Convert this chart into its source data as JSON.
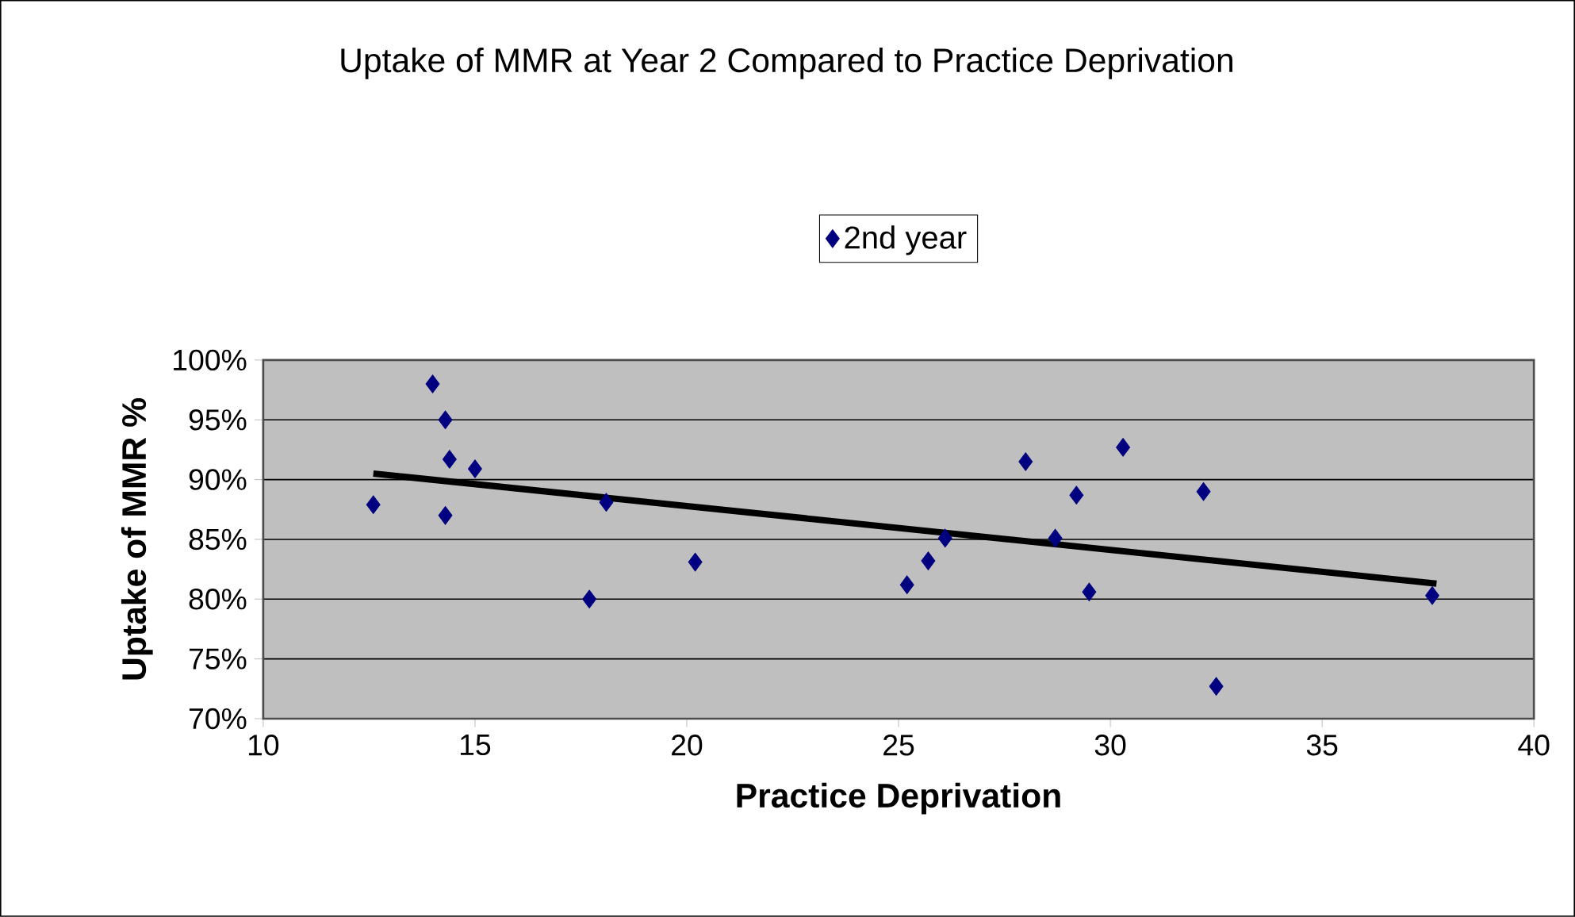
{
  "chart_data": {
    "type": "scatter",
    "title": "Uptake of MMR at Year 2 Compared to Practice Deprivation",
    "xlabel": "Practice Deprivation",
    "ylabel": "Uptake of MMR %",
    "xlim": [
      10,
      40
    ],
    "xticks": [
      10,
      15,
      20,
      25,
      30,
      35,
      40
    ],
    "ylim": [
      70,
      100
    ],
    "yticks": [
      {
        "value": 70,
        "label": "70%"
      },
      {
        "value": 75,
        "label": "75%"
      },
      {
        "value": 80,
        "label": "80%"
      },
      {
        "value": 85,
        "label": "85%"
      },
      {
        "value": 90,
        "label": "90%"
      },
      {
        "value": 95,
        "label": "95%"
      },
      {
        "value": 100,
        "label": "100%"
      }
    ],
    "grid": "y",
    "legend": "top",
    "marker": "diamond",
    "series": [
      {
        "name": "2nd year",
        "color": "#000080",
        "x": [
          14.0,
          14.3,
          14.4,
          15.0,
          12.6,
          14.3,
          18.1,
          17.7,
          20.2,
          25.2,
          25.7,
          26.1,
          28.0,
          28.7,
          29.2,
          29.5,
          30.3,
          32.2,
          32.5,
          37.6
        ],
        "values": [
          98.0,
          95.0,
          91.7,
          90.9,
          87.9,
          87.0,
          88.1,
          80.0,
          83.1,
          81.2,
          83.2,
          85.1,
          91.5,
          85.1,
          88.7,
          80.6,
          92.7,
          89.0,
          72.7,
          80.3
        ]
      },
      {
        "type": "line",
        "color": "#000000",
        "marker": "none",
        "x": [
          12.6,
          37.7
        ],
        "values": [
          90.5,
          81.3
        ]
      }
    ]
  }
}
